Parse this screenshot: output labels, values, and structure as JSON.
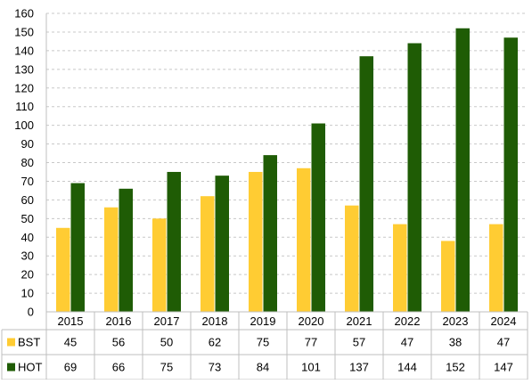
{
  "chart_data": {
    "type": "bar",
    "categories": [
      "2015",
      "2016",
      "2017",
      "2018",
      "2019",
      "2020",
      "2021",
      "2022",
      "2023",
      "2024"
    ],
    "series": [
      {
        "name": "BST",
        "color": "#ffcc33",
        "values": [
          45,
          56,
          50,
          62,
          75,
          77,
          57,
          47,
          38,
          47
        ]
      },
      {
        "name": "HOT",
        "color": "#1f5c05",
        "values": [
          69,
          66,
          75,
          73,
          84,
          101,
          137,
          144,
          152,
          147
        ]
      }
    ],
    "ylim": [
      0,
      160
    ],
    "yticks": [
      0,
      10,
      20,
      30,
      40,
      50,
      60,
      70,
      80,
      90,
      100,
      110,
      120,
      130,
      140,
      150,
      160
    ],
    "grid": "horizontal dashed",
    "legend": "data table below chart",
    "title": "",
    "xlabel": "",
    "ylabel": ""
  }
}
